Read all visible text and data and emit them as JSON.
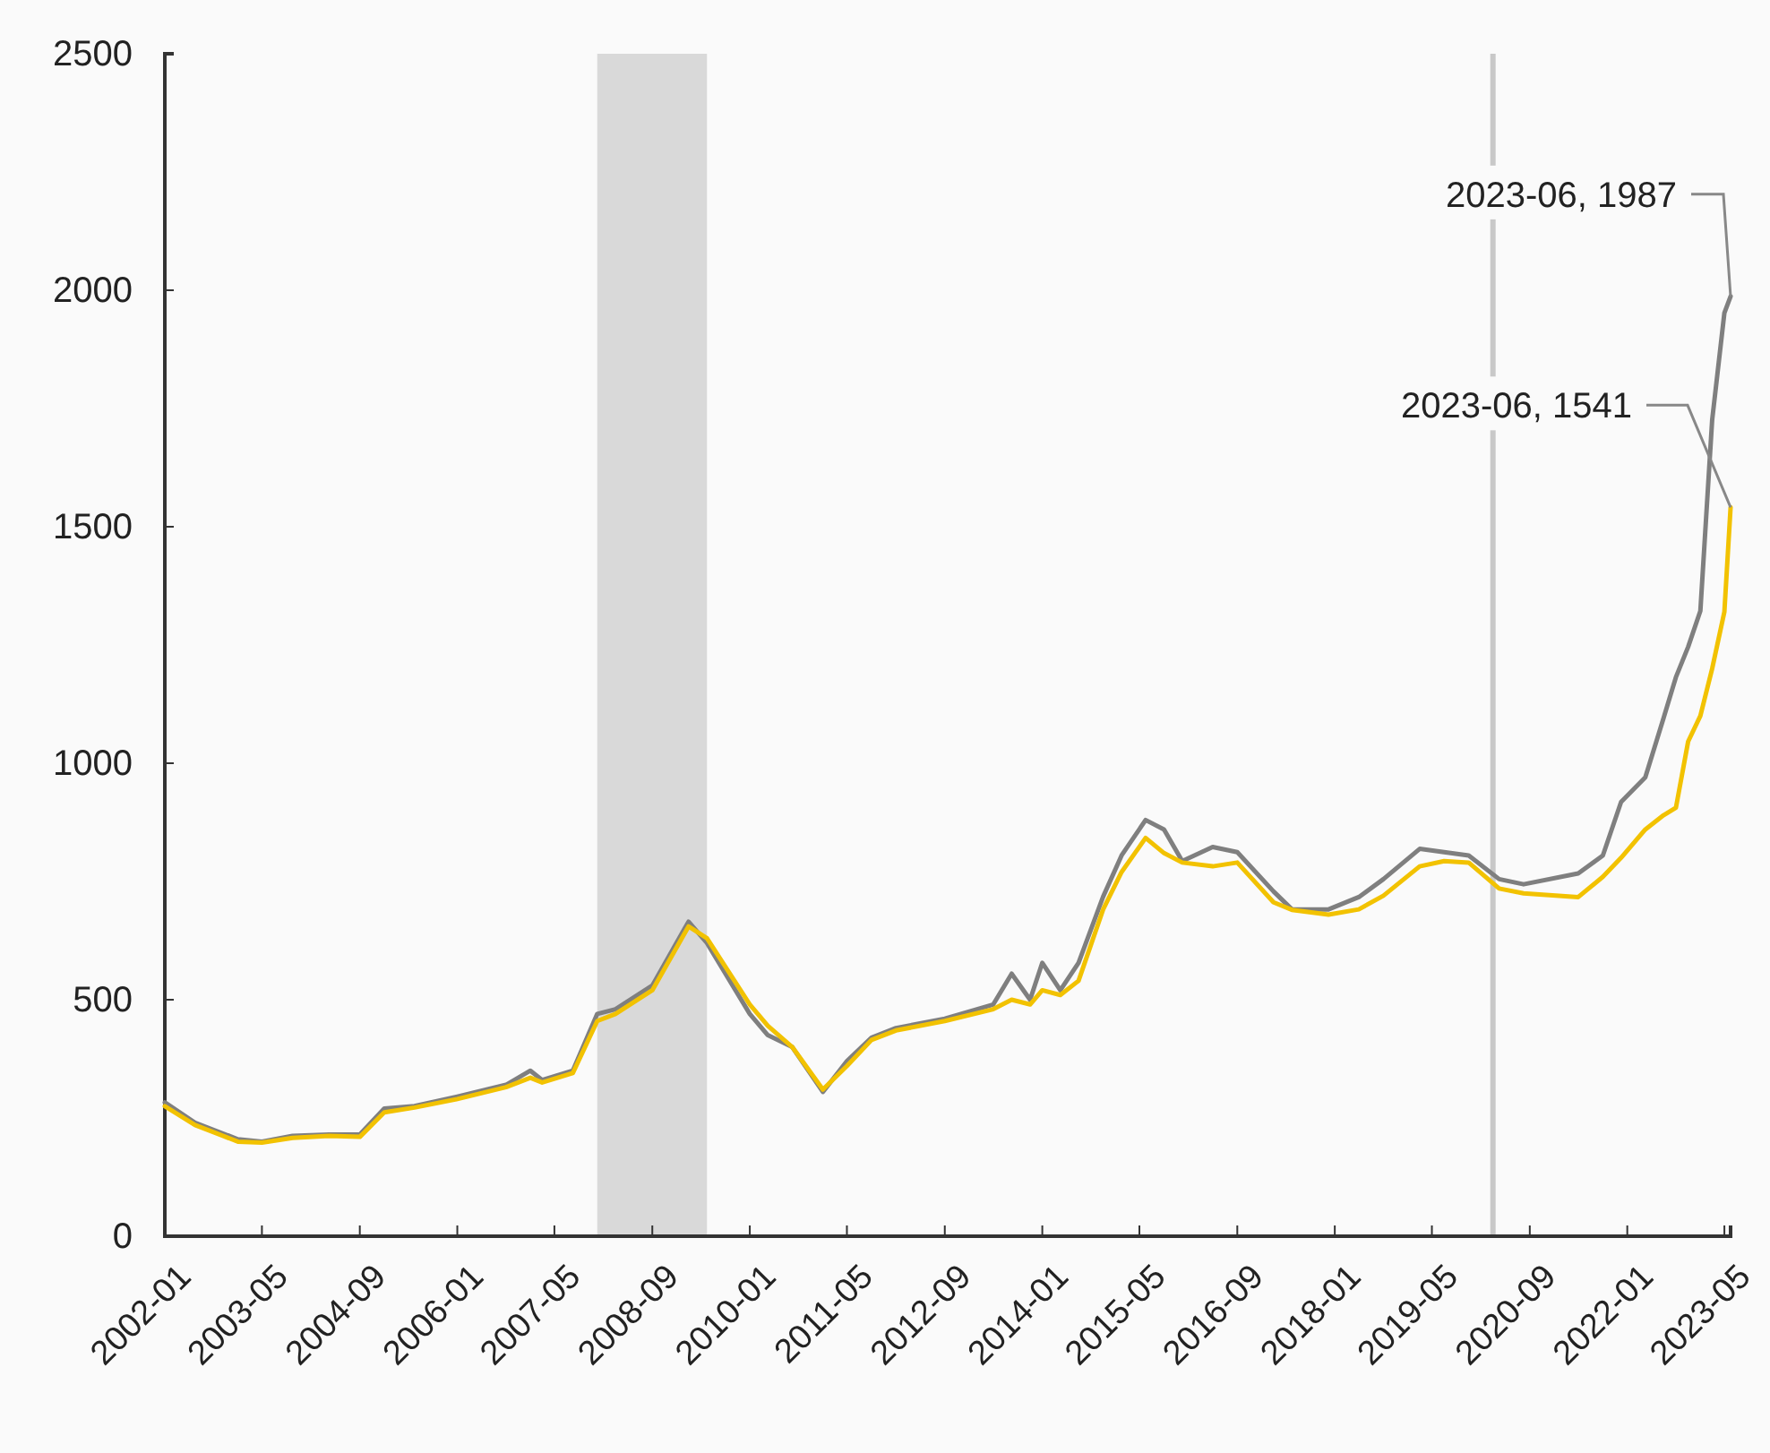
{
  "chart_data": {
    "type": "line",
    "x": [
      "2002-01",
      "2002-06",
      "2003-01",
      "2003-05",
      "2003-10",
      "2004-04",
      "2004-09",
      "2005-01",
      "2005-06",
      "2006-01",
      "2006-09",
      "2007-01",
      "2007-03",
      "2007-08",
      "2007-12",
      "2008-03",
      "2008-09",
      "2009-03",
      "2009-06",
      "2010-01",
      "2010-04",
      "2010-08",
      "2011-01",
      "2011-05",
      "2011-09",
      "2012-01",
      "2012-09",
      "2013-05",
      "2013-08",
      "2013-11",
      "2014-01",
      "2014-04",
      "2014-07",
      "2014-11",
      "2015-02",
      "2015-06",
      "2015-09",
      "2015-12",
      "2016-05",
      "2016-09",
      "2017-03",
      "2017-06",
      "2017-12",
      "2018-05",
      "2018-09",
      "2019-03",
      "2019-07",
      "2019-11",
      "2020-04",
      "2020-08",
      "2021-05",
      "2021-09",
      "2021-12",
      "2022-04",
      "2022-07",
      "2022-09",
      "2022-11",
      "2023-01",
      "2023-03",
      "2023-05",
      "2023-06"
    ],
    "series": [
      {
        "color": "#7f7f7f",
        "values": [
          283,
          240,
          205,
          200,
          212,
          215,
          215,
          270,
          275,
          295,
          320,
          350,
          330,
          350,
          470,
          480,
          530,
          665,
          620,
          470,
          425,
          400,
          305,
          370,
          420,
          440,
          460,
          490,
          555,
          500,
          578,
          520,
          578,
          718,
          805,
          880,
          860,
          793,
          823,
          812,
          729,
          691,
          691,
          717,
          755,
          819,
          812,
          805,
          755,
          744,
          767,
          805,
          918,
          970,
          1095,
          1182,
          1246,
          1322,
          1726,
          1952,
          1987
        ]
      },
      {
        "color": "#f2c200",
        "values": [
          275,
          235,
          200,
          198,
          208,
          212,
          210,
          262,
          272,
          290,
          315,
          335,
          325,
          345,
          455,
          470,
          520,
          655,
          630,
          490,
          445,
          400,
          310,
          360,
          415,
          435,
          455,
          480,
          500,
          490,
          520,
          510,
          540,
          691,
          770,
          842,
          810,
          790,
          782,
          790,
          706,
          690,
          680,
          691,
          720,
          782,
          793,
          790,
          735,
          725,
          717,
          760,
          800,
          860,
          890,
          906,
          1046,
          1100,
          1200,
          1320,
          1541
        ]
      }
    ],
    "xlim": [
      "2002-01",
      "2023-06"
    ],
    "xticks": [
      "2002-01",
      "2003-05",
      "2004-09",
      "2006-01",
      "2007-05",
      "2008-09",
      "2010-01",
      "2011-05",
      "2012-09",
      "2014-01",
      "2015-05",
      "2016-09",
      "2018-01",
      "2019-05",
      "2020-09",
      "2022-01",
      "2023-05"
    ],
    "ylim": [
      0,
      2500
    ],
    "yticks": [
      0,
      500,
      1000,
      1500,
      2000,
      2500
    ],
    "bands": [
      {
        "axis": "x",
        "from": "2007-12",
        "to": "2009-06",
        "color": "#d9d9d9"
      }
    ],
    "ref_lines": [
      {
        "axis": "x",
        "value": "2020-03",
        "color": "#c8c8c8"
      }
    ],
    "annotations": [
      {
        "text": "2023-06, 1987",
        "x": "2023-06",
        "y": 1987
      },
      {
        "text": "2023-06, 1541",
        "x": "2023-06",
        "y": 1541
      }
    ],
    "grid": false,
    "marker": "none",
    "line_style": "solid"
  }
}
